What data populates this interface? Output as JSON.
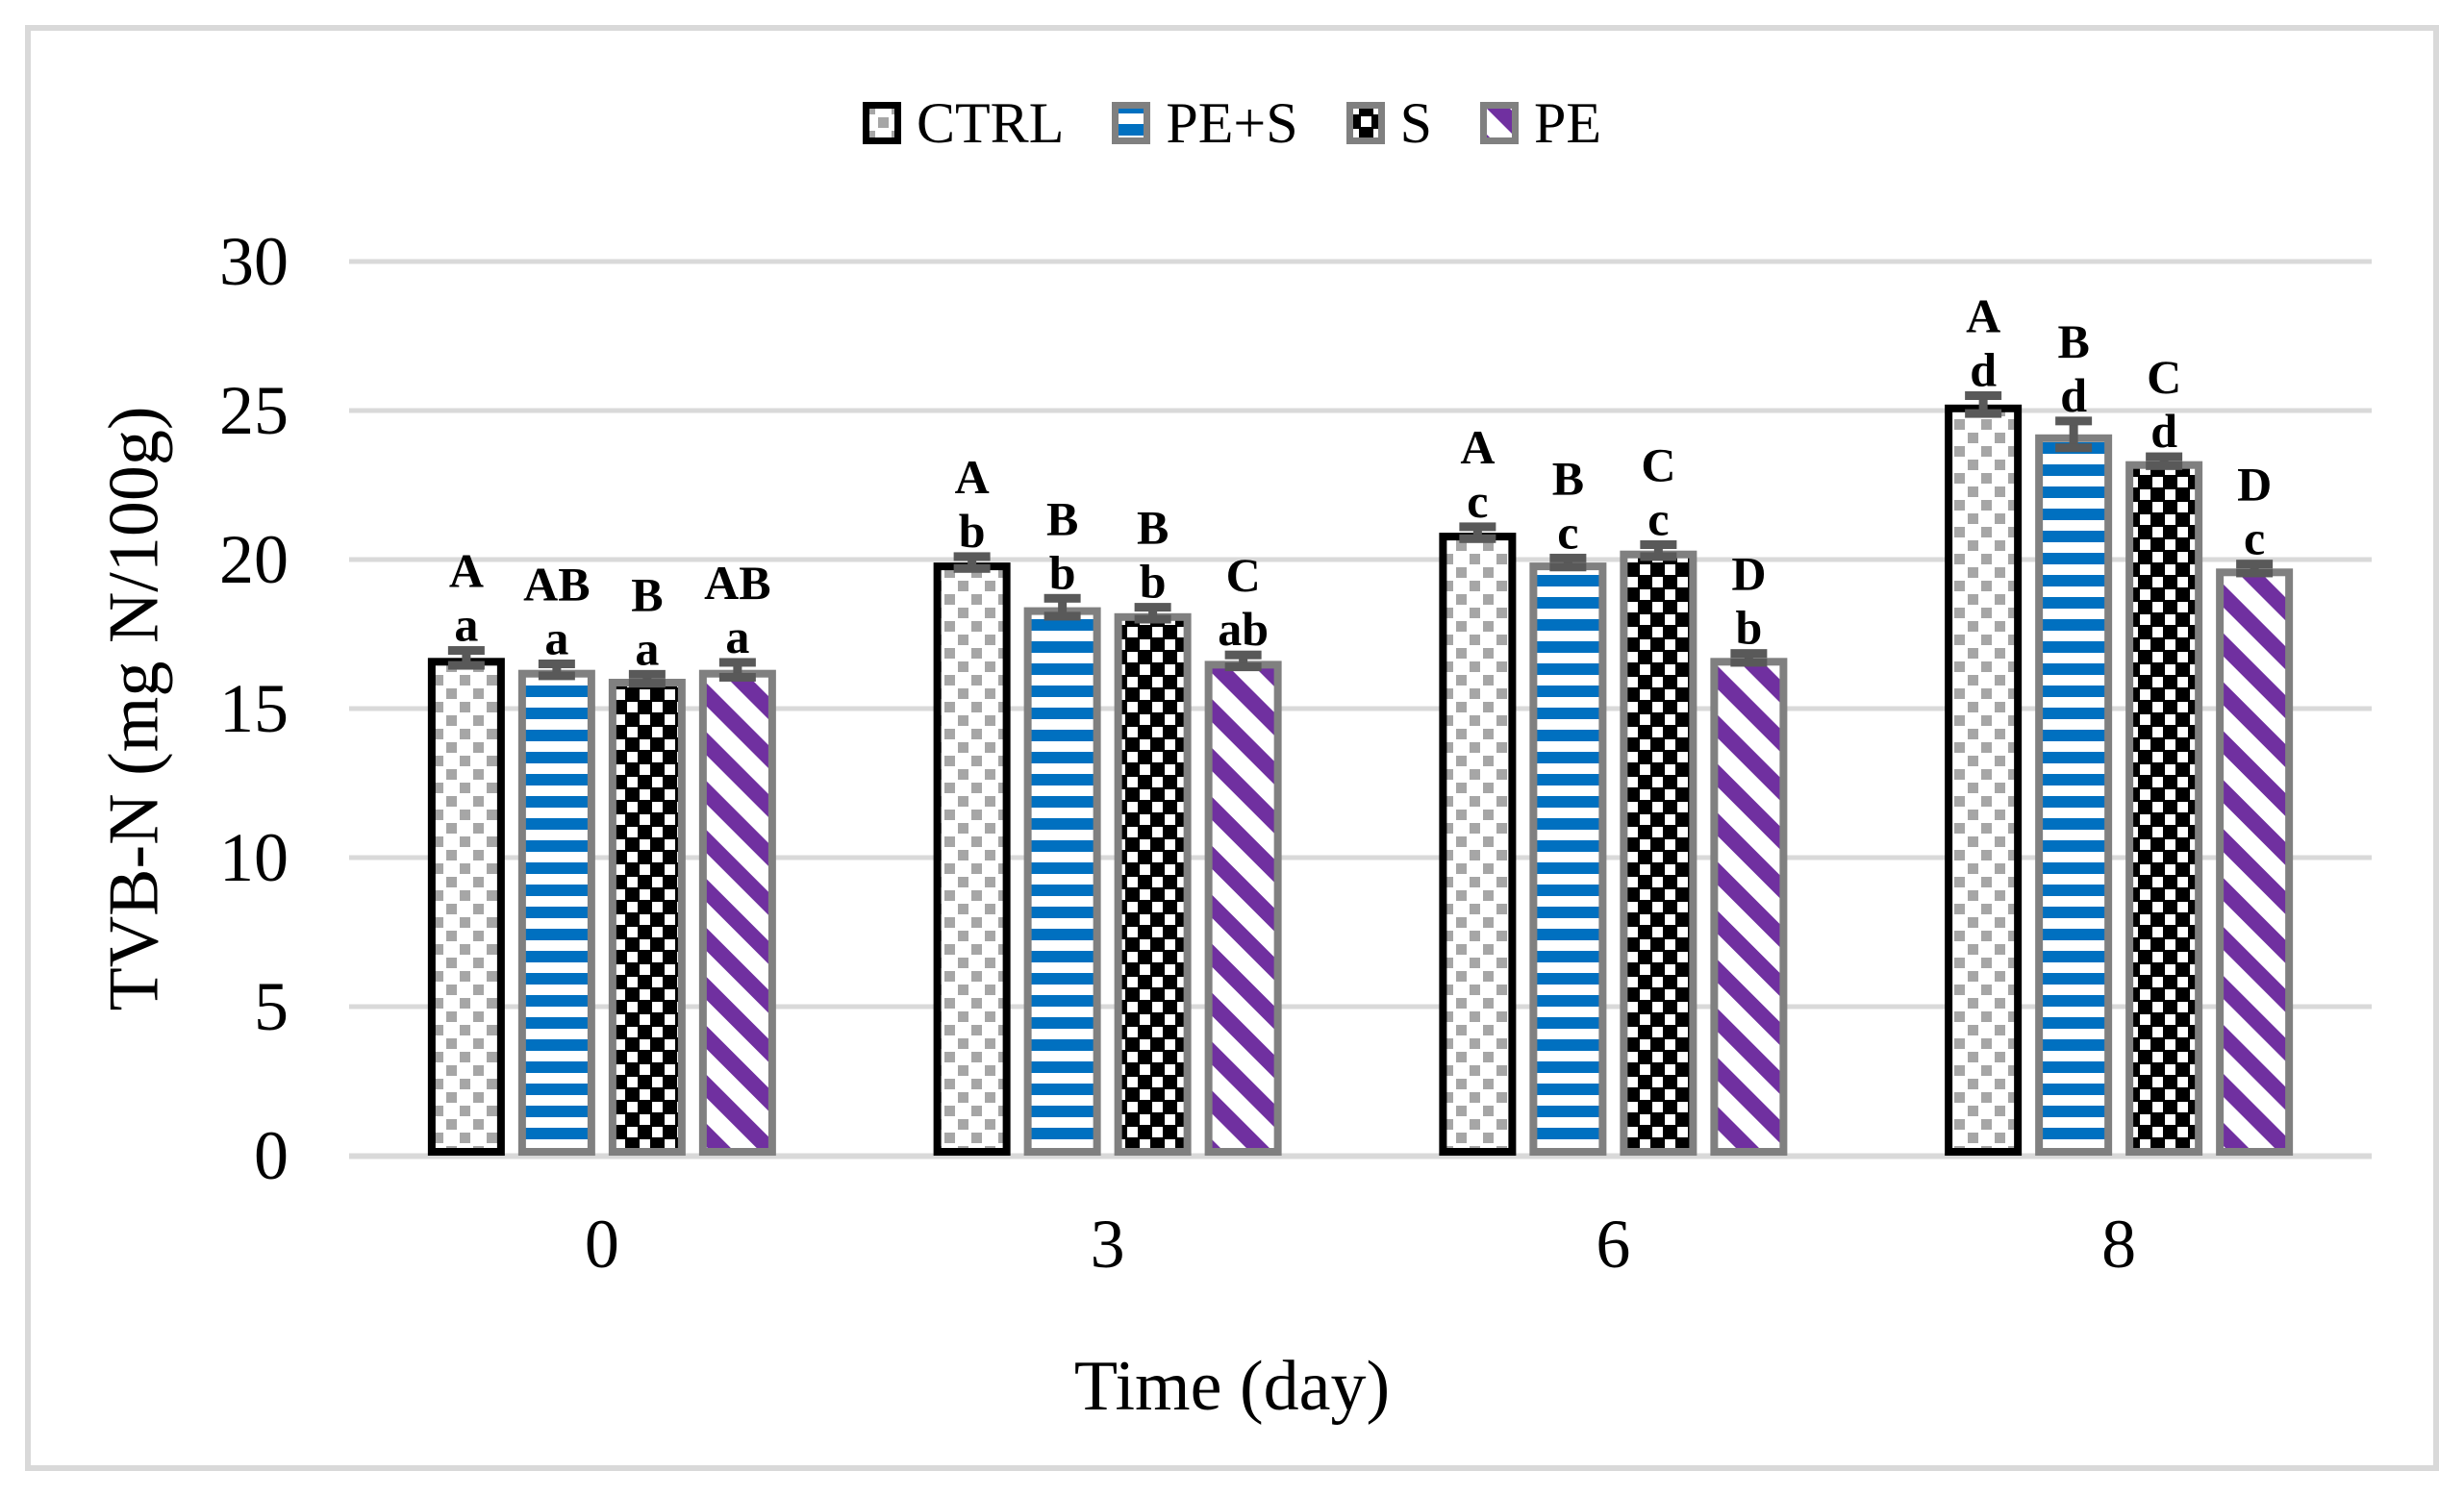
{
  "figure": {
    "frame_color": "#d9d9d9",
    "background": "#ffffff"
  },
  "chart_data": {
    "type": "bar",
    "title": "",
    "xlabel": "Time (day)",
    "ylabel": "TVB-N (mg N/100g)",
    "categories": [
      "0",
      "3",
      "6",
      "8"
    ],
    "ylim": [
      0,
      30
    ],
    "yticks": [
      0,
      5,
      10,
      15,
      20,
      25,
      30
    ],
    "grid": "horizontal-light-gray",
    "legend_position": "top-center",
    "error_bars": true,
    "series": [
      {
        "name": "CTRL",
        "pattern": "gray-square-dots-on-white",
        "border_color": "#000000",
        "values": [
          16.7,
          19.9,
          20.9,
          25.2
        ],
        "errors": [
          0.25,
          0.2,
          0.2,
          0.3
        ],
        "sig_letters": [
          [
            "A",
            "a"
          ],
          [
            "A",
            "b"
          ],
          [
            "A",
            "c"
          ],
          [
            "A",
            "d"
          ]
        ]
      },
      {
        "name": "PE+S",
        "pattern": "blue-horizontal-stripes-on-white",
        "border_color": "#808080",
        "values": [
          16.3,
          18.4,
          19.9,
          24.2
        ],
        "errors": [
          0.2,
          0.3,
          0.15,
          0.45
        ],
        "sig_letters": [
          [
            "AB",
            "a"
          ],
          [
            "B",
            "b"
          ],
          [
            "B",
            "c"
          ],
          [
            "B",
            "d"
          ]
        ]
      },
      {
        "name": "S",
        "pattern": "white-square-dots-on-black",
        "border_color": "#808080",
        "values": [
          16.0,
          18.2,
          20.3,
          23.3
        ],
        "errors": [
          0.15,
          0.2,
          0.2,
          0.15
        ],
        "sig_letters": [
          [
            "B",
            "a"
          ],
          [
            "B",
            "b"
          ],
          [
            "C",
            "c"
          ],
          [
            "C",
            "d"
          ]
        ]
      },
      {
        "name": "PE",
        "pattern": "purple-diagonal-stripes-on-white",
        "border_color": "#808080",
        "values": [
          16.3,
          16.6,
          16.7,
          19.7
        ],
        "errors": [
          0.25,
          0.2,
          0.15,
          0.15
        ],
        "sig_letters": [
          [
            "AB",
            "a"
          ],
          [
            "C",
            "ab"
          ],
          [
            "D",
            "b"
          ],
          [
            "D",
            "c"
          ]
        ]
      }
    ],
    "colors": {
      "blue": "#0070C0",
      "purple": "#7030A0",
      "ctrl_dot_gray": "#a6a6a6",
      "bar_border_gray": "#808080",
      "error_bar": "#595959",
      "gridline": "#d9d9d9",
      "text": "#000000"
    }
  }
}
